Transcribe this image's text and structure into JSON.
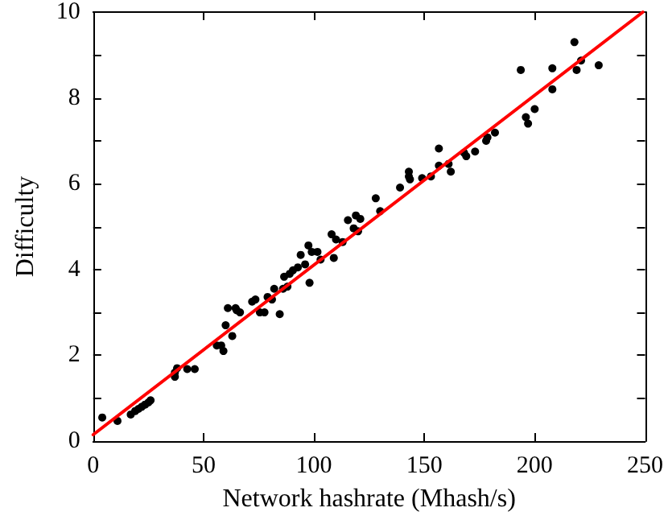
{
  "chart_data": {
    "type": "scatter",
    "xlabel": "Network hashrate (Mhash/s)",
    "ylabel": "Difficulty",
    "xlim": [
      0,
      250
    ],
    "ylim": [
      0,
      10
    ],
    "xticks": [
      0,
      50,
      100,
      150,
      200,
      250
    ],
    "yticks": [
      0,
      {
        "value": 1,
        "label": null
      },
      2,
      {
        "value": 3,
        "label": null
      },
      4,
      {
        "value": 5,
        "label": null
      },
      6,
      {
        "value": 7,
        "label": null
      },
      8,
      {
        "value": 9,
        "label": null
      },
      10
    ],
    "grid": false,
    "marker": "circle",
    "series": [
      {
        "color": "#000000",
        "x": [
          4.1,
          11,
          17,
          19,
          20.5,
          22,
          23.5,
          25,
          26,
          37,
          37,
          38,
          42.6,
          46,
          56,
          58,
          59,
          60,
          61,
          63,
          64.5,
          65,
          66.5,
          72,
          73.5,
          75.5,
          77.6,
          79,
          81,
          82,
          84.5,
          86,
          86.5,
          88,
          89,
          90.5,
          92.7,
          94,
          96,
          97.5,
          98,
          99,
          101.6,
          103,
          108,
          109,
          110,
          113,
          115.4,
          118,
          119,
          120,
          121,
          128,
          130,
          139,
          143,
          143,
          143.5,
          149,
          153,
          156.6,
          156.6,
          161,
          162,
          168,
          169,
          173,
          178,
          178.6,
          182,
          193.7,
          196,
          197,
          200,
          208,
          208,
          218,
          219,
          221,
          229
        ],
        "values": [
          0.55,
          0.47,
          0.62,
          0.7,
          0.75,
          0.8,
          0.85,
          0.9,
          0.95,
          1.5,
          1.6,
          1.7,
          1.68,
          1.68,
          2.23,
          2.23,
          2.1,
          2.7,
          3.1,
          2.45,
          3.1,
          3.05,
          3.0,
          3.25,
          3.3,
          3.0,
          3.0,
          3.36,
          3.3,
          3.55,
          2.96,
          3.55,
          3.83,
          3.6,
          3.9,
          3.98,
          4.05,
          4.34,
          4.12,
          4.56,
          3.69,
          4.41,
          4.41,
          4.23,
          4.82,
          4.27,
          4.7,
          4.64,
          5.15,
          4.96,
          5.26,
          4.89,
          5.18,
          5.66,
          5.36,
          5.91,
          6.28,
          6.17,
          6.1,
          6.13,
          6.17,
          6.82,
          6.42,
          6.46,
          6.28,
          6.72,
          6.64,
          6.75,
          7.0,
          7.08,
          7.19,
          8.65,
          7.55,
          7.4,
          7.74,
          8.2,
          8.69,
          9.3,
          8.65,
          8.87,
          8.76
        ]
      },
      {
        "type": "line",
        "color": "#ff0000",
        "marker": "none",
        "line_style": "solid",
        "x": [
          0,
          249
        ],
        "values": [
          0.15,
          10.0
        ]
      }
    ]
  }
}
